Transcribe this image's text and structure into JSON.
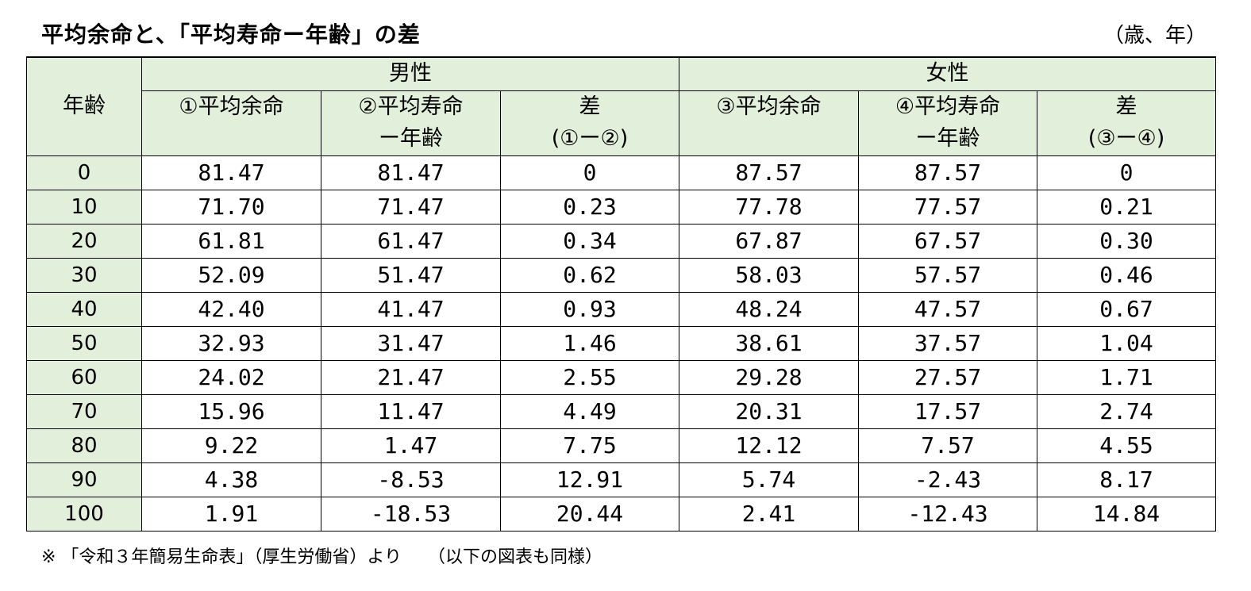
{
  "title": "平均余命と、「平均寿命ー年齢」の差",
  "unit": "（歳、年）",
  "note": "※ 「令和３年簡易生命表」（厚生労働省）より　　（以下の図表も同様）",
  "chart_data": {
    "type": "table",
    "header": {
      "age": "年齢",
      "groups": [
        "男性",
        "女性"
      ],
      "columns": [
        [
          "①平均余命",
          ""
        ],
        [
          "②平均寿命",
          "ー年齢"
        ],
        [
          "差",
          "(①ー②)"
        ],
        [
          "③平均余命",
          ""
        ],
        [
          "④平均寿命",
          "ー年齢"
        ],
        [
          "差",
          "(③ー④)"
        ]
      ]
    },
    "rows": [
      [
        "0",
        "81.47",
        "81.47",
        "0",
        "87.57",
        "87.57",
        "0"
      ],
      [
        "10",
        "71.70",
        "71.47",
        "0.23",
        "77.78",
        "77.57",
        "0.21"
      ],
      [
        "20",
        "61.81",
        "61.47",
        "0.34",
        "67.87",
        "67.57",
        "0.30"
      ],
      [
        "30",
        "52.09",
        "51.47",
        "0.62",
        "58.03",
        "57.57",
        "0.46"
      ],
      [
        "40",
        "42.40",
        "41.47",
        "0.93",
        "48.24",
        "47.57",
        "0.67"
      ],
      [
        "50",
        "32.93",
        "31.47",
        "1.46",
        "38.61",
        "37.57",
        "1.04"
      ],
      [
        "60",
        "24.02",
        "21.47",
        "2.55",
        "29.28",
        "27.57",
        "1.71"
      ],
      [
        "70",
        "15.96",
        "11.47",
        "4.49",
        "20.31",
        "17.57",
        "2.74"
      ],
      [
        "80",
        "9.22",
        "1.47",
        "7.75",
        "12.12",
        "7.57",
        "4.55"
      ],
      [
        "90",
        "4.38",
        "-8.53",
        "12.91",
        "5.74",
        "-2.43",
        "8.17"
      ],
      [
        "100",
        "1.91",
        "-18.53",
        "20.44",
        "2.41",
        "-12.43",
        "14.84"
      ]
    ]
  }
}
